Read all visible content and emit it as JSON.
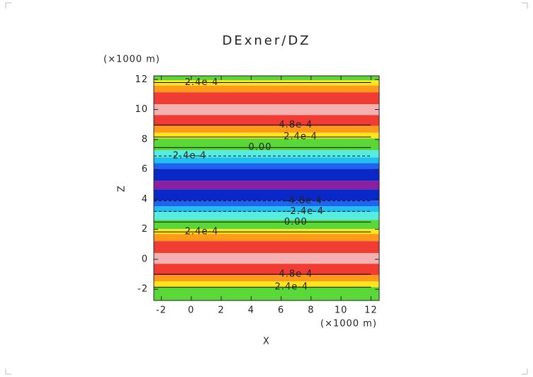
{
  "chart_data": {
    "type": "contour",
    "title": "DExner/DZ",
    "x_label": "X",
    "y_label": "Z",
    "x_unit": "(×1000 m)",
    "y_unit": "(×1000 m)",
    "xlim": [
      -2.5,
      12.55
    ],
    "ylim": [
      -2.75,
      12.25
    ],
    "xticks": [
      -2,
      0,
      2,
      4,
      6,
      8,
      10,
      12
    ],
    "yticks": [
      -2,
      0,
      2,
      4,
      6,
      8,
      10,
      12
    ],
    "bands": [
      {
        "from": 11.95,
        "to": 12.25,
        "color": "#5ad83a"
      },
      {
        "from": 11.6,
        "to": 11.95,
        "color": "#ffe61a"
      },
      {
        "from": 11.15,
        "to": 11.6,
        "color": "#ff9a1a"
      },
      {
        "from": 10.35,
        "to": 11.15,
        "color": "#f03c32"
      },
      {
        "from": 9.63,
        "to": 10.35,
        "color": "#f5b0b0"
      },
      {
        "from": 8.9,
        "to": 9.63,
        "color": "#f03c32"
      },
      {
        "from": 8.45,
        "to": 8.9,
        "color": "#ff9a1a"
      },
      {
        "from": 8.07,
        "to": 8.45,
        "color": "#ffe61a"
      },
      {
        "from": 7.27,
        "to": 8.07,
        "color": "#5ad83a"
      },
      {
        "from": 6.8,
        "to": 7.27,
        "color": "#55ede1"
      },
      {
        "from": 6.42,
        "to": 6.8,
        "color": "#1fc0f0"
      },
      {
        "from": 6.04,
        "to": 6.42,
        "color": "#1e64f0"
      },
      {
        "from": 5.24,
        "to": 6.04,
        "color": "#0a28c8"
      },
      {
        "from": 4.67,
        "to": 5.24,
        "color": "#8c1ea0"
      },
      {
        "from": 3.91,
        "to": 4.67,
        "color": "#0a28c8"
      },
      {
        "from": 3.53,
        "to": 3.91,
        "color": "#1e64f0"
      },
      {
        "from": 3.15,
        "to": 3.53,
        "color": "#1fc0f0"
      },
      {
        "from": 2.63,
        "to": 3.15,
        "color": "#55ede1"
      },
      {
        "from": 2.02,
        "to": 2.63,
        "color": "#5ad83a"
      },
      {
        "from": 1.69,
        "to": 2.02,
        "color": "#ffe61a"
      },
      {
        "from": 1.21,
        "to": 1.69,
        "color": "#ff9a1a"
      },
      {
        "from": 0.41,
        "to": 1.21,
        "color": "#f03c32"
      },
      {
        "from": -0.3,
        "to": 0.41,
        "color": "#f5b0b0"
      },
      {
        "from": -1.06,
        "to": -0.3,
        "color": "#f03c32"
      },
      {
        "from": -1.48,
        "to": -1.06,
        "color": "#ff9a1a"
      },
      {
        "from": -1.86,
        "to": -1.48,
        "color": "#ffe61a"
      },
      {
        "from": -2.75,
        "to": -1.86,
        "color": "#5ad83a"
      }
    ],
    "contours": [
      {
        "label": "2.4e-4",
        "level": 0.00024,
        "z": 11.8,
        "x": 0.7
      },
      {
        "label": "4.8e-4",
        "level": 0.00048,
        "z": 8.97,
        "x": 6.98
      },
      {
        "label": "2.4e-4",
        "level": 0.00024,
        "z": 8.17,
        "x": 7.3
      },
      {
        "label": "0.00",
        "level": 0,
        "z": 7.46,
        "x": 4.6
      },
      {
        "label": "-2.4e-4",
        "level": -0.00024,
        "z": 6.9,
        "x": -0.24
      },
      {
        "label": "-4.8e-4",
        "level": -0.00048,
        "z": 3.9,
        "x": 7.5
      },
      {
        "label": "-2.4e-4",
        "level": -0.00024,
        "z": 3.2,
        "x": 7.6
      },
      {
        "label": "0.00",
        "level": 0,
        "z": 2.49,
        "x": 6.98
      },
      {
        "label": "2.4e-4",
        "level": 0.00024,
        "z": 1.83,
        "x": 0.7
      },
      {
        "label": "4.8e-4",
        "level": 0.00048,
        "z": -1.0,
        "x": 6.98
      },
      {
        "label": "2.4e-4",
        "level": 0.00024,
        "z": -1.86,
        "x": 6.7
      }
    ]
  }
}
